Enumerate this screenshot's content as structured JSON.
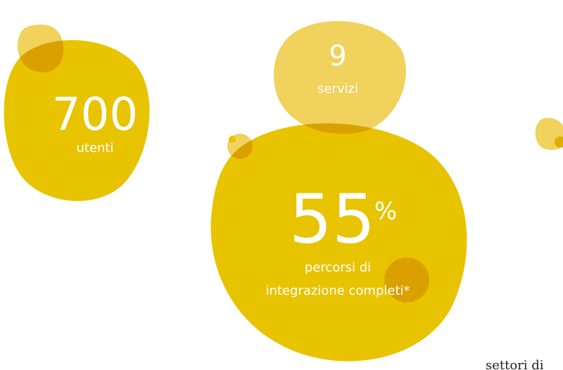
{
  "stats": [
    {
      "number": "700",
      "label": "utenti"
    },
    {
      "number": "9",
      "label": "servizi"
    },
    {
      "number": "55",
      "unit": "%",
      "label_lines": [
        "percorsi di",
        "integrazione completi*"
      ]
    }
  ],
  "footer_text": "settori di"
}
